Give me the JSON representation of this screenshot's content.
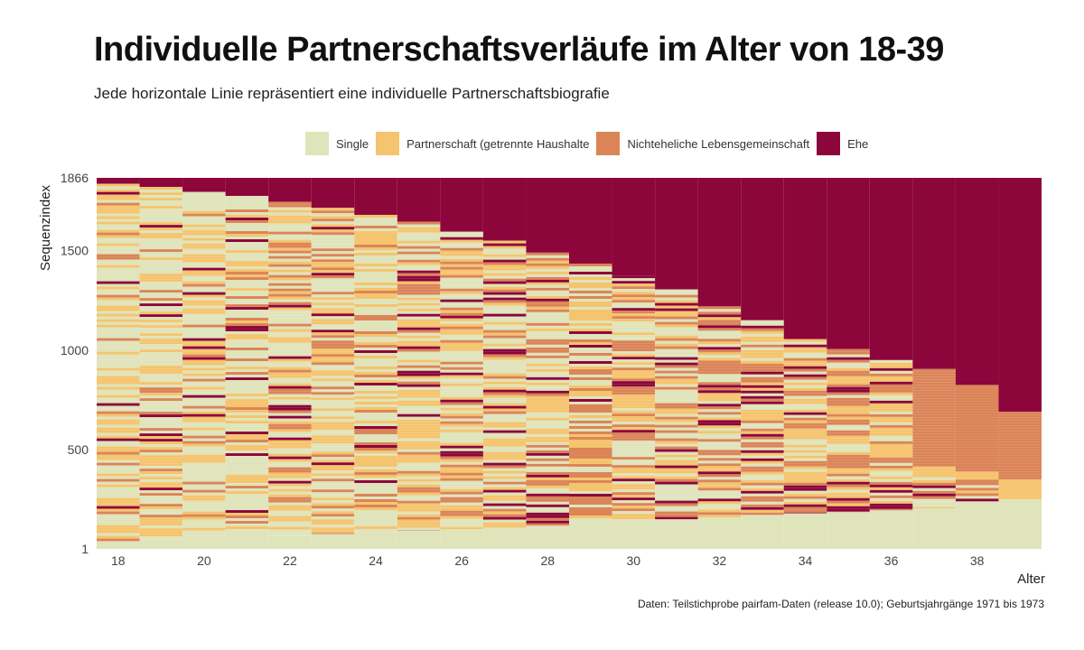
{
  "chart_data": {
    "type": "area",
    "title": "Individuelle Partnerschaftsverläufe im Alter von 18-39",
    "subtitle": "Jede horizontale Linie repräsentiert eine individuelle Partnerschaftsbiografie",
    "xlabel": "Alter",
    "ylabel": "Sequenzindex",
    "caption": "Daten: Teilstichprobe pairfam-Daten (release 10.0); Geburtsjahrgänge 1971 bis 1973",
    "xlim": [
      17.5,
      39.5
    ],
    "ylim": [
      1,
      1866
    ],
    "x_ticks": [
      "18",
      "20",
      "22",
      "24",
      "26",
      "28",
      "30",
      "32",
      "34",
      "36",
      "38"
    ],
    "y_ticks": [
      "1",
      "500",
      "1000",
      "1500",
      "1866"
    ],
    "legend_position": "top",
    "states": [
      {
        "name": "Single",
        "color": "#e0e4bb"
      },
      {
        "name": "Partnerschaft (getrennte Haushalte",
        "color": "#f5c46e"
      },
      {
        "name": "Nichteheliche Lebensgemeinschaft",
        "color": "#db8458"
      },
      {
        "name": "Ehe",
        "color": "#8c063b"
      }
    ],
    "ages": [
      18,
      19,
      20,
      21,
      22,
      23,
      24,
      25,
      26,
      27,
      28,
      29,
      30,
      31,
      32,
      33,
      34,
      35,
      36,
      37,
      38,
      39
    ],
    "married_from_index": [
      1836,
      1820,
      1795,
      1775,
      1745,
      1715,
      1680,
      1645,
      1595,
      1550,
      1490,
      1435,
      1375,
      1305,
      1220,
      1150,
      1055,
      1005,
      950,
      905,
      825,
      690
    ],
    "cohabiting_from_index": [
      null,
      null,
      null,
      null,
      null,
      null,
      null,
      null,
      null,
      null,
      null,
      null,
      null,
      null,
      null,
      null,
      null,
      null,
      null,
      420,
      395,
      350
    ],
    "partner_from_index": [
      null,
      null,
      null,
      null,
      null,
      null,
      null,
      null,
      null,
      null,
      null,
      null,
      null,
      null,
      null,
      null,
      null,
      null,
      null,
      390,
      350,
      250
    ],
    "single_block_to_index": [
      40,
      50,
      55,
      62,
      68,
      76,
      84,
      92,
      100,
      108,
      118,
      130,
      140,
      150,
      160,
      172,
      180,
      186,
      195,
      205,
      230,
      250
    ]
  },
  "text": {
    "title": "Individuelle Partnerschaftsverläufe im Alter von 18-39",
    "subtitle": "Jede horizontale Linie repräsentiert eine individuelle Partnerschaftsbiografie",
    "caption": "Daten: Teilstichprobe pairfam-Daten (release 10.0); Geburtsjahrgänge 1971 bis 1973",
    "legend": [
      "Single",
      "Partnerschaft (getrennte Haushalte",
      "Nichteheliche Lebensgemeinschaft",
      "Ehe"
    ]
  }
}
